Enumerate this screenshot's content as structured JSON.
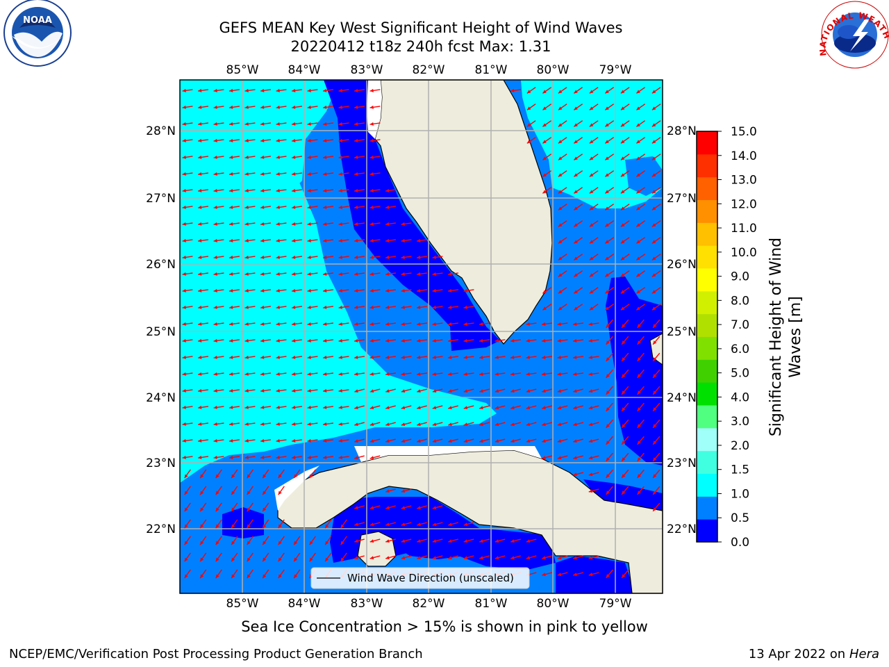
{
  "title": {
    "line1": "GEFS MEAN Key West Significant Height of Wind Waves",
    "line2": "20220412 t18z 240h fcst   Max: 1.31"
  },
  "map": {
    "lon_labels": [
      "85°W",
      "84°W",
      "83°W",
      "82°W",
      "81°W",
      "80°W",
      "79°W"
    ],
    "lat_labels": [
      "28°N",
      "27°N",
      "26°N",
      "25°N",
      "24°N",
      "23°N",
      "22°N"
    ],
    "legend_label": "Wind Wave Direction (unscaled)",
    "colors": {
      "land": "#eeecdc",
      "arrow": "#ff0000",
      "grid": "#b0b0b0"
    }
  },
  "colorbar": {
    "label_line1": "Significant Height of Wind",
    "label_line2": "Waves [m]",
    "ticks": [
      "0.0",
      "0.5",
      "1.0",
      "1.5",
      "2.0",
      "3.0",
      "4.0",
      "5.0",
      "6.0",
      "7.0",
      "8.0",
      "9.0",
      "10.0",
      "11.0",
      "12.0",
      "13.0",
      "14.0",
      "15.0"
    ],
    "colors": [
      "#0000ff",
      "#0080ff",
      "#00ffff",
      "#40ffe0",
      "#a0fff8",
      "#50ff80",
      "#00e000",
      "#40d000",
      "#80e000",
      "#b0e000",
      "#d0f000",
      "#ffff00",
      "#ffe000",
      "#ffc000",
      "#ff9000",
      "#ff6000",
      "#ff3000",
      "#ff0000"
    ]
  },
  "logos": {
    "noaa": "NOAA",
    "noaa_ring": "NATIONAL OCEANIC AND ATMOSPHERIC ADMINISTRATION · U.S. DEPARTMENT OF COMMERCE",
    "nws_ring": "NATIONAL WEATHER SERVICE"
  },
  "footer": {
    "caption": "Sea Ice Concentration > 15% is shown in pink to yellow",
    "left": "NCEP/EMC/Verification Post Processing Product Generation Branch",
    "right_date": "13 Apr 2022 on ",
    "right_host": "Hera"
  }
}
